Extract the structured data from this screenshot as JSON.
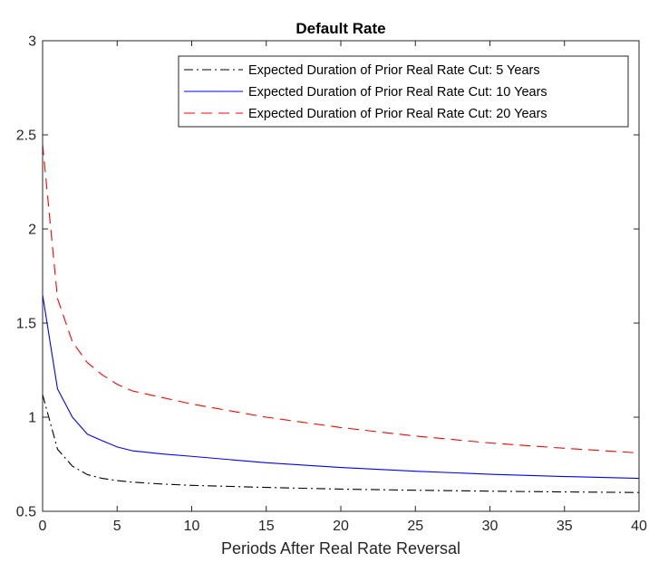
{
  "chart_data": {
    "type": "line",
    "title": "Default Rate",
    "xlabel": "Periods After Real Rate Reversal",
    "ylabel": "",
    "xlim": [
      0,
      40
    ],
    "ylim": [
      0.5,
      3
    ],
    "xticks": [
      0,
      5,
      10,
      15,
      20,
      25,
      30,
      35,
      40
    ],
    "yticks": [
      0.5,
      1,
      1.5,
      2,
      2.5,
      3
    ],
    "xtick_labels": [
      "0",
      "5",
      "10",
      "15",
      "20",
      "25",
      "30",
      "35",
      "40"
    ],
    "ytick_labels": [
      "0.5",
      "1",
      "1.5",
      "2",
      "2.5",
      "3"
    ],
    "grid": false,
    "legend_position": "top-right",
    "series": [
      {
        "name": "Expected Duration of Prior Real Rate Cut: 5 Years",
        "color": "#000000",
        "line_style": "dash-dot",
        "x": [
          0,
          1,
          2,
          3,
          4,
          5,
          6,
          8,
          10,
          15,
          20,
          25,
          30,
          35,
          40
        ],
        "y": [
          1.12,
          0.83,
          0.74,
          0.695,
          0.675,
          0.663,
          0.655,
          0.645,
          0.638,
          0.627,
          0.618,
          0.612,
          0.607,
          0.603,
          0.6
        ]
      },
      {
        "name": "Expected Duration of Prior Real Rate Cut: 10 Years",
        "color": "#0000ff",
        "line_style": "solid",
        "x": [
          0,
          1,
          2,
          3,
          4,
          5,
          6,
          8,
          10,
          15,
          20,
          25,
          30,
          35,
          40
        ],
        "y": [
          1.65,
          1.15,
          1.0,
          0.91,
          0.875,
          0.842,
          0.822,
          0.805,
          0.792,
          0.758,
          0.733,
          0.713,
          0.697,
          0.685,
          0.675
        ]
      },
      {
        "name": "Expected Duration of Prior Real Rate Cut: 20 Years",
        "color": "#ff0000",
        "line_style": "dashed",
        "x": [
          0,
          1,
          2,
          3,
          4,
          5,
          6,
          8,
          10,
          15,
          20,
          25,
          30,
          35,
          40
        ],
        "y": [
          2.45,
          1.63,
          1.4,
          1.29,
          1.225,
          1.175,
          1.14,
          1.105,
          1.07,
          1.0,
          0.945,
          0.9,
          0.863,
          0.835,
          0.81
        ]
      }
    ]
  }
}
